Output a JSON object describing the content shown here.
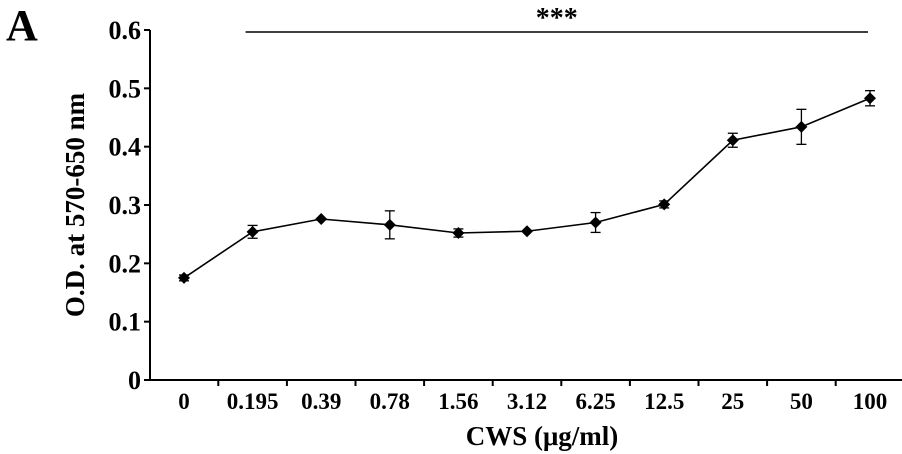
{
  "figure": {
    "panel_label": "A"
  },
  "chart_data": {
    "type": "line",
    "categories": [
      "0",
      "0.195",
      "0.39",
      "0.78",
      "1.56",
      "3.12",
      "6.25",
      "12.5",
      "25",
      "50",
      "100"
    ],
    "series": [
      {
        "values": [
          0.175,
          0.254,
          0.276,
          0.266,
          0.252,
          0.255,
          0.27,
          0.301,
          0.411,
          0.434,
          0.483
        ],
        "errors": [
          0.005,
          0.011,
          0.004,
          0.024,
          0.007,
          0.004,
          0.017,
          0.006,
          0.012,
          0.03,
          0.013
        ],
        "color": "#000000",
        "marker": "diamond"
      }
    ],
    "xlabel": "CWS (μg/ml)",
    "ylabel": "O.D. at 570-650 nm",
    "ylim": [
      0,
      0.6
    ],
    "yticks": [
      "0",
      "0.1",
      "0.2",
      "0.3",
      "0.4",
      "0.5",
      "0.6"
    ],
    "significance": {
      "label": "***",
      "from_category": "0.195",
      "to_category": "100"
    },
    "grid": false,
    "legend": "none"
  }
}
